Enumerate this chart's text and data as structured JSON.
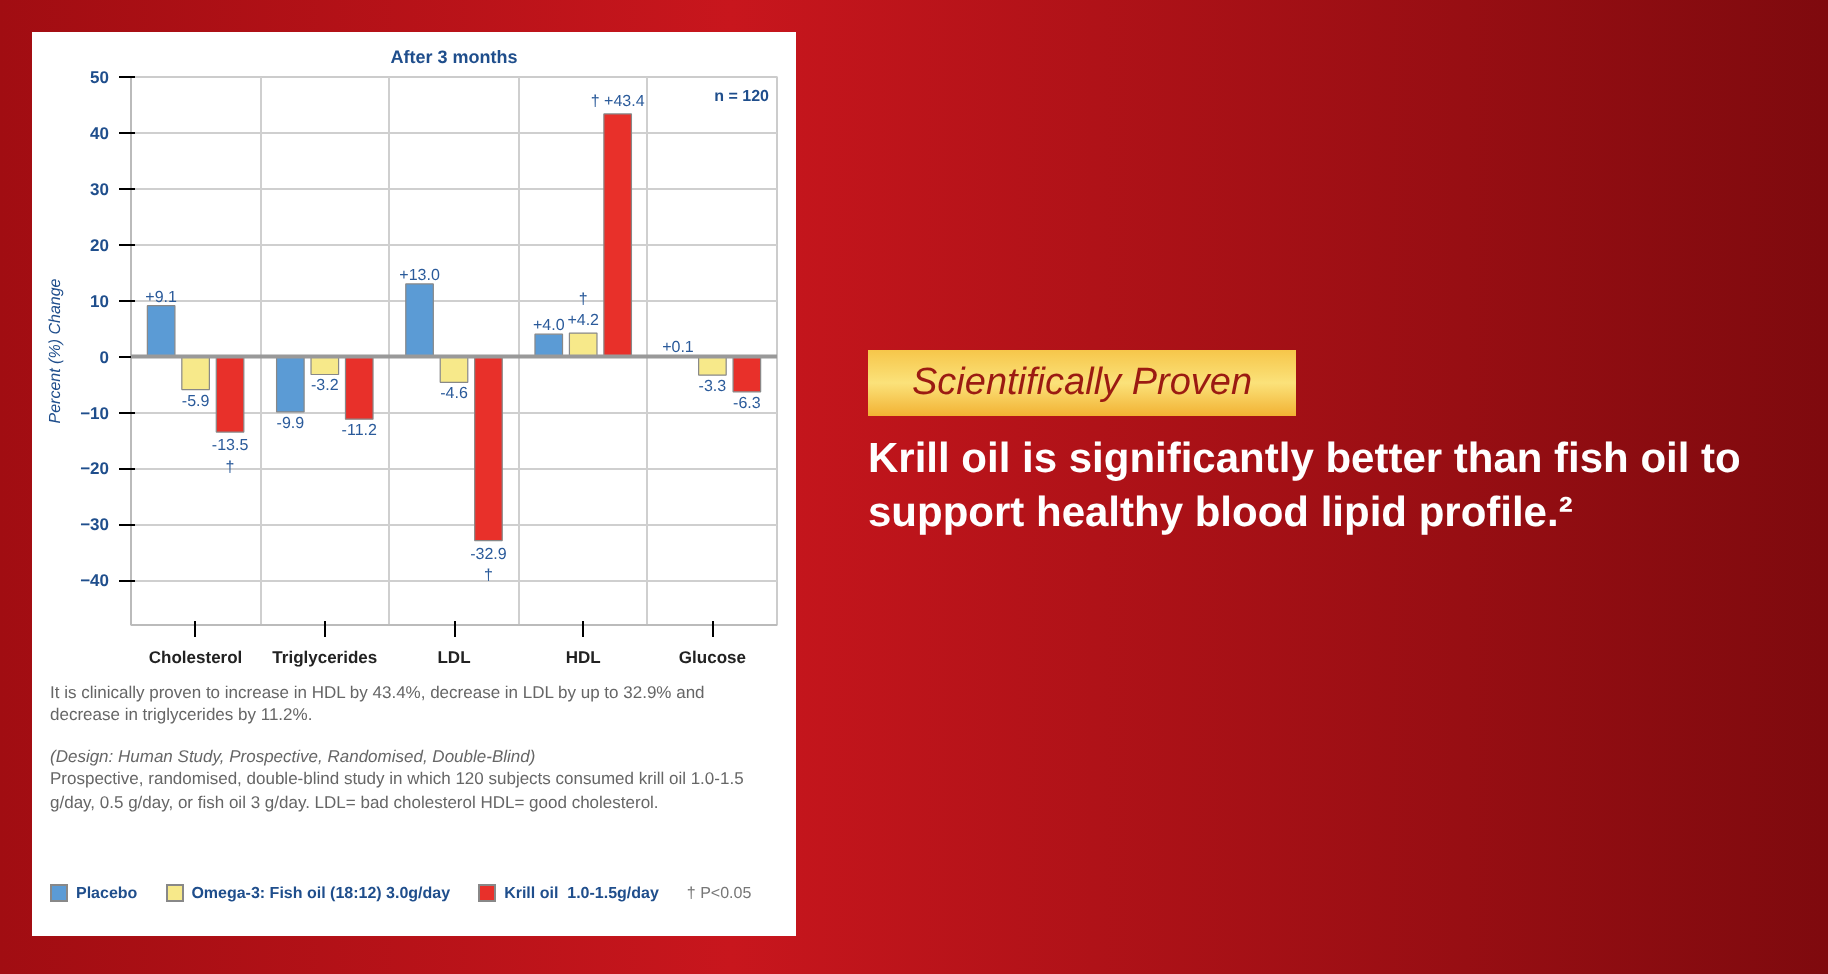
{
  "chart_data": {
    "type": "bar",
    "title": "After 3 months",
    "ylabel": "Percent (%) Change",
    "categories": [
      "Cholesterol",
      "Triglycerides",
      "LDL",
      "HDL",
      "Glucose"
    ],
    "series": [
      {
        "name": "Placebo",
        "color": "#5b9bd5",
        "values": [
          9.1,
          -9.9,
          13.0,
          4.0,
          0.1
        ],
        "value_labels": [
          "+9.1",
          "-9.9",
          "+13.0",
          "+4.0",
          "+0.1"
        ]
      },
      {
        "name": "Omega-3: Fish oil (18:12) 3.0g/day",
        "color": "#f7e98a",
        "values": [
          -5.9,
          -3.2,
          -4.6,
          4.2,
          -3.3
        ],
        "value_labels": [
          "-5.9",
          "-3.2",
          "-4.6",
          "†\n+4.2",
          "-3.3"
        ]
      },
      {
        "name": "Krill oil  1.0-1.5g/day",
        "color": "#e8302a",
        "values": [
          -13.5,
          -11.2,
          -32.9,
          43.4,
          -6.3
        ],
        "value_labels": [
          "-13.5\n†",
          "-11.2",
          "-32.9\n†",
          "† +43.4",
          "-6.3"
        ]
      }
    ],
    "ylim": [
      -48,
      50
    ],
    "yticks": [
      -40,
      -30,
      -20,
      -10,
      0,
      10,
      20,
      30,
      40,
      50
    ],
    "grid": true,
    "legend": "bottom",
    "annotations": [
      "n = 120",
      "† P<0.05",
      "It is clinically proven to increase in HDL by 43.4%, decrease  in LDL by up to 32.9% and decrease in triglycerides by 11.2%.",
      "(Design: Human Study, Prospective, Randomised, Double-Blind)",
      "Prospective, randomised, double-blind study in which 120 subjects consumed krill oil 1.0-1.5 g/day, 0.5 g/day, or fish oil 3 g/day. LDL= bad cholesterol HDL= good cholesterol.",
      "Scientifically Proven",
      "Krill oil is significantly better than fish oil to support healthy blood lipid profile.²"
    ]
  }
}
